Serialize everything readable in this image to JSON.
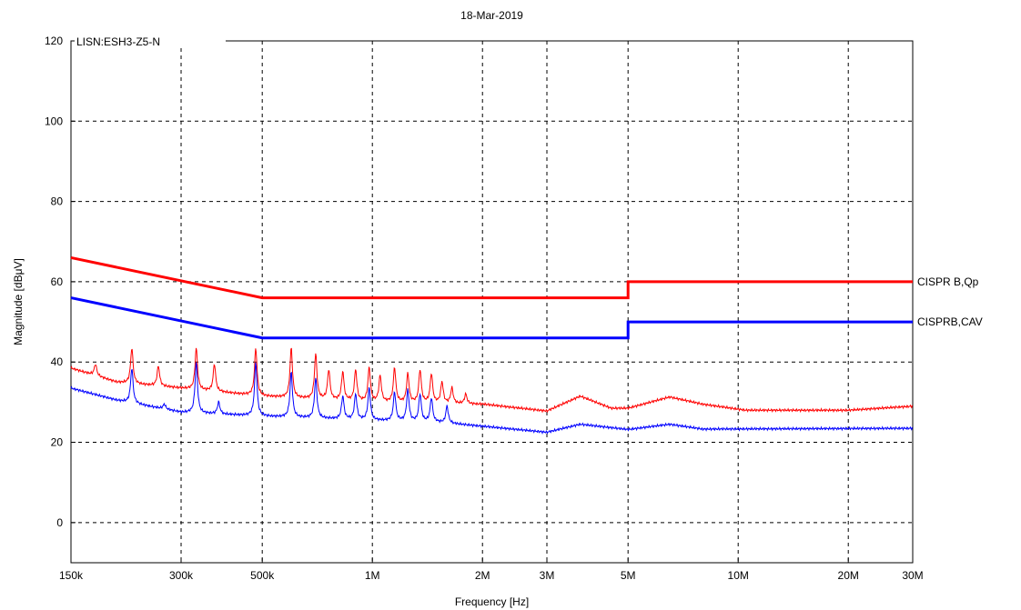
{
  "chart_data": {
    "type": "line",
    "title": "18-Mar-2019",
    "annotation": "LISN:ESH3-Z5-N",
    "xlabel": "Frequency [Hz]",
    "ylabel": "Magnitude [dBμV]",
    "x_scale": "log",
    "xlim": [
      150000,
      30000000
    ],
    "ylim": [
      -10,
      120
    ],
    "grid": true,
    "x_ticks": [
      {
        "value": 150000,
        "label": "150k"
      },
      {
        "value": 300000,
        "label": "300k"
      },
      {
        "value": 500000,
        "label": "500k"
      },
      {
        "value": 1000000,
        "label": "1M"
      },
      {
        "value": 2000000,
        "label": "2M"
      },
      {
        "value": 3000000,
        "label": "3M"
      },
      {
        "value": 5000000,
        "label": "5M"
      },
      {
        "value": 10000000,
        "label": "10M"
      },
      {
        "value": 20000000,
        "label": "20M"
      },
      {
        "value": 30000000,
        "label": "30M"
      }
    ],
    "y_ticks": [
      {
        "value": 0,
        "label": "0"
      },
      {
        "value": 20,
        "label": "20"
      },
      {
        "value": 40,
        "label": "40"
      },
      {
        "value": 60,
        "label": "60"
      },
      {
        "value": 80,
        "label": "80"
      },
      {
        "value": 100,
        "label": "100"
      },
      {
        "value": 120,
        "label": "120"
      }
    ],
    "series": [
      {
        "name": "CISPR B,Qp",
        "color": "#ff0000",
        "role": "limit",
        "x": [
          150000,
          500000,
          5000000,
          5000000,
          30000000
        ],
        "y": [
          66,
          56,
          56,
          60,
          60
        ]
      },
      {
        "name": "CISPRB,CAV",
        "color": "#0000ff",
        "role": "limit",
        "x": [
          150000,
          500000,
          5000000,
          5000000,
          30000000
        ],
        "y": [
          56,
          46,
          46,
          50,
          50
        ]
      },
      {
        "color": "#ff0000",
        "role": "measurement",
        "baseline": [
          [
            150000,
            38.5
          ],
          [
            200000,
            35
          ],
          [
            300000,
            33.5
          ],
          [
            500000,
            31.5
          ],
          [
            1000000,
            30
          ],
          [
            2000000,
            29.5
          ],
          [
            3000000,
            27.8
          ],
          [
            3700000,
            31.5
          ],
          [
            4500000,
            28.5
          ],
          [
            5000000,
            28.5
          ],
          [
            6500000,
            31.3
          ],
          [
            8000000,
            29.5
          ],
          [
            10500000,
            28
          ],
          [
            20000000,
            28
          ],
          [
            30000000,
            29
          ]
        ],
        "peaks": [
          [
            175000,
            39.5
          ],
          [
            220000,
            43.5
          ],
          [
            260000,
            39
          ],
          [
            330000,
            43.5
          ],
          [
            370000,
            39.5
          ],
          [
            480000,
            43.5
          ],
          [
            600000,
            43.5
          ],
          [
            700000,
            42
          ],
          [
            760000,
            38
          ],
          [
            830000,
            37.5
          ],
          [
            900000,
            38
          ],
          [
            980000,
            38.5
          ],
          [
            1050000,
            36.5
          ],
          [
            1150000,
            38.5
          ],
          [
            1250000,
            37
          ],
          [
            1350000,
            38
          ],
          [
            1450000,
            37
          ],
          [
            1550000,
            35
          ],
          [
            1650000,
            33.5
          ],
          [
            1800000,
            32
          ]
        ]
      },
      {
        "color": "#0000ff",
        "role": "measurement",
        "baseline": [
          [
            150000,
            33.5
          ],
          [
            200000,
            30.5
          ],
          [
            300000,
            27.5
          ],
          [
            500000,
            26.5
          ],
          [
            1000000,
            25.5
          ],
          [
            1500000,
            25
          ],
          [
            2000000,
            24
          ],
          [
            3000000,
            22.5
          ],
          [
            3700000,
            24.5
          ],
          [
            5000000,
            23.2
          ],
          [
            6500000,
            24.5
          ],
          [
            8000000,
            23.3
          ],
          [
            30000000,
            23.5
          ]
        ],
        "peaks": [
          [
            220000,
            38.5
          ],
          [
            270000,
            29.5
          ],
          [
            330000,
            40
          ],
          [
            380000,
            30
          ],
          [
            480000,
            40
          ],
          [
            600000,
            37.5
          ],
          [
            700000,
            36
          ],
          [
            830000,
            31.5
          ],
          [
            900000,
            32
          ],
          [
            980000,
            33.5
          ],
          [
            1150000,
            32.5
          ],
          [
            1250000,
            33
          ],
          [
            1350000,
            32
          ],
          [
            1450000,
            31
          ],
          [
            1600000,
            29
          ]
        ]
      }
    ]
  }
}
